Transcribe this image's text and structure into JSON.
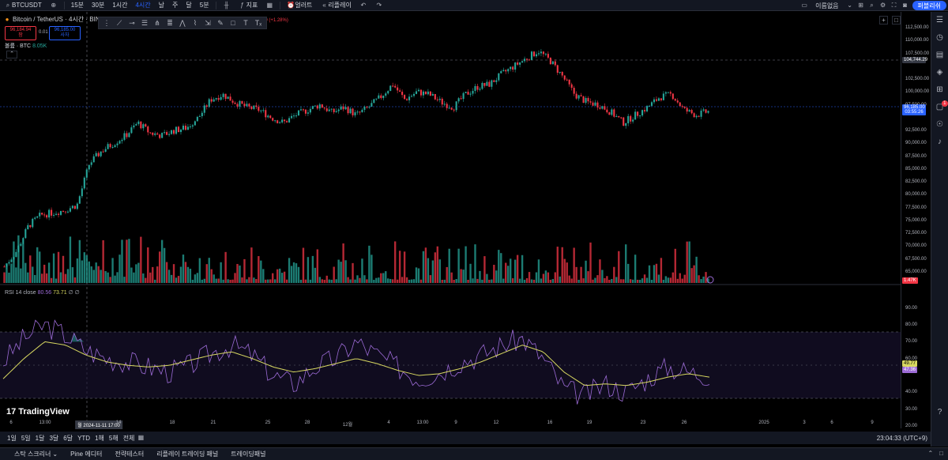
{
  "topbar": {
    "symbol": "BTCUSDT",
    "intervals": [
      "15분",
      "30분",
      "1시간",
      "4시간",
      "날",
      "주",
      "달",
      "5분"
    ],
    "active_interval": "4시간",
    "indicators_label": "지표",
    "alert_label": "얼러트",
    "replay_label": "리플레이",
    "unnamed_label": "이름없음",
    "publish_label": "퍼블리쉬"
  },
  "legend": {
    "title": "Bitcoin / TetherUS · 4시간 · BIN",
    "change": "90 (+1.28%)",
    "sell_price": "96,184.94",
    "sell_label": "팜",
    "spread": "0.01",
    "buy_price": "96,185.00",
    "buy_label": "사자",
    "volume_label": "볼륨 · BTC",
    "volume_value": "8.05K"
  },
  "rsi_legend": {
    "label": "RSI 14 close",
    "v1": "80.56",
    "v2": "73.71",
    "extra": "∅ ∅"
  },
  "price_scale": {
    "labels": [
      "112,500.00",
      "110,000.00",
      "107,500.00",
      "102,500.00",
      "100,000.00",
      "97,500.00",
      "92,500.00",
      "90,000.00",
      "87,500.00",
      "85,000.00",
      "82,500.00",
      "80,000.00",
      "77,500.00",
      "75,000.00",
      "72,500.00",
      "70,000.00",
      "67,500.00",
      "65,000.00"
    ],
    "line_tag": "104,744.29",
    "current_price": "96,185.00",
    "countdown": "03:55:26",
    "volume_tag": "1.47K",
    "rsi_labels": [
      "90.00",
      "80.00",
      "70.00",
      "60.00",
      "40.00",
      "30.00",
      "20.00"
    ],
    "rsi_a": "49.77",
    "rsi_b": "47.36"
  },
  "time_axis": {
    "labels": [
      "6",
      "13:00",
      "18",
      "21",
      "25",
      "28",
      "12월",
      "4",
      "13:00",
      "9",
      "12",
      "16",
      "19",
      "23",
      "26",
      "2025",
      "3",
      "6",
      "9"
    ],
    "cursor": "월 2024-11-11  17:00",
    "cursor_extra": "14"
  },
  "range_bar": {
    "items": [
      "1일",
      "5일",
      "1달",
      "3달",
      "6달",
      "YTD",
      "1해",
      "5해",
      "전체"
    ],
    "clock": "23:04:33 (UTC+9)"
  },
  "bottom_tabs": [
    "스탁 스크리너",
    "Pine 에디터",
    "전략테스터",
    "리플레이 트레이딩 패널",
    "트레이딩패널"
  ],
  "logo_text": "TradingView",
  "colors": {
    "up": "#26a69a",
    "down": "#f23645",
    "accent": "#2962ff",
    "rsi": "#9c6bd6",
    "rsi_ma": "#d8d861"
  },
  "chart_data": {
    "type": "candlestick",
    "ylim": [
      62500,
      112500
    ],
    "close_path": [
      66000,
      69000,
      74000,
      76000,
      76500,
      77000,
      78000,
      86000,
      88500,
      90000,
      91500,
      94000,
      92000,
      91500,
      92500,
      93000,
      95000,
      98500,
      99500,
      98000,
      97000,
      96500,
      95000,
      94000,
      95500,
      96500,
      97500,
      96000,
      97000,
      95500,
      97000,
      99000,
      101500,
      98500,
      100000,
      99500,
      98000,
      97000,
      99500,
      101000,
      101500,
      103500,
      105000,
      106500,
      108000,
      106000,
      103000,
      99500,
      98000,
      97500,
      96000,
      94000,
      95500,
      97000,
      99000,
      99500,
      96500,
      95500,
      96185
    ],
    "rsi_path": [
      58,
      72,
      80,
      74,
      65,
      60,
      58,
      55,
      52,
      56,
      63,
      68,
      62,
      50,
      45,
      55,
      60,
      70,
      62,
      55,
      48,
      52,
      58,
      62,
      68,
      72,
      60,
      42,
      38,
      45,
      40,
      48,
      55,
      52,
      50
    ],
    "rsi_ma_path": [
      48,
      60,
      70,
      68,
      62,
      58,
      56,
      55,
      56,
      59,
      62,
      64,
      60,
      55,
      52,
      54,
      57,
      60,
      57,
      53,
      50,
      51,
      54,
      58,
      63,
      68,
      64,
      52,
      44,
      45,
      44,
      46,
      49,
      51,
      49
    ]
  }
}
